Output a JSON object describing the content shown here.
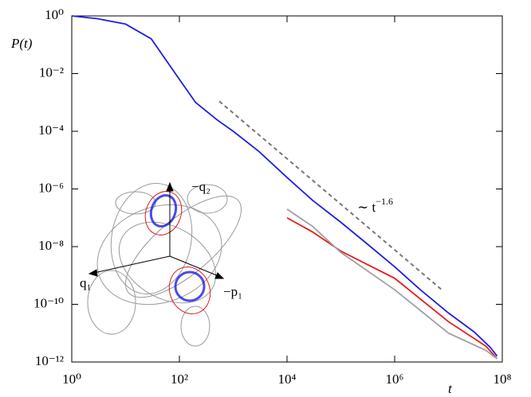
{
  "chart_data": {
    "type": "line",
    "log": true,
    "y_label": "P(t)",
    "x_label": "t",
    "annotation": {
      "text": "∼ t",
      "exponent": "−1.6"
    },
    "inset_labels": [
      "−q₂",
      "q₁",
      "−p₁"
    ],
    "xlim": [
      1,
      100000000
    ],
    "ylim": [
      1e-12,
      1
    ],
    "xticks": [
      {
        "value": 1,
        "label": "10⁰"
      },
      {
        "value": 100,
        "label": "10²"
      },
      {
        "value": 10000,
        "label": "10⁴"
      },
      {
        "value": 1000000,
        "label": "10⁶"
      },
      {
        "value": 100000000,
        "label": "10⁸"
      }
    ],
    "yticks": [
      {
        "value": 1,
        "label": "10⁰"
      },
      {
        "value": 0.01,
        "label": "10⁻²"
      },
      {
        "value": 0.0001,
        "label": "10⁻⁴"
      },
      {
        "value": 1e-06,
        "label": "10⁻⁶"
      },
      {
        "value": 1e-08,
        "label": "10⁻⁸"
      },
      {
        "value": 1e-10,
        "label": "10⁻¹⁰"
      },
      {
        "value": 1e-12,
        "label": "10⁻¹²"
      }
    ],
    "series": [
      {
        "color": "#1f1fe6",
        "x": [
          1,
          3,
          10,
          30,
          100,
          200,
          500,
          1000,
          3000,
          10000,
          30000,
          100000,
          300000,
          1000000,
          3000000,
          10000000,
          30000000,
          60000000,
          80000000
        ],
        "values": [
          1,
          0.8,
          0.52,
          0.16,
          0.0063,
          0.001,
          0.00025,
          0.0001,
          2e-05,
          2.5e-06,
          4e-07,
          7e-08,
          1.3e-08,
          2e-09,
          3.2e-10,
          5e-11,
          1.1e-11,
          3.2e-12,
          1.6e-12
        ]
      },
      {
        "color": "#e61a1a",
        "x": [
          10000,
          30000,
          100000,
          1000000,
          10000000,
          50000000,
          80000000
        ],
        "values": [
          1e-07,
          3.2e-08,
          7e-09,
          8e-10,
          2.5e-11,
          3.5e-12,
          1.3e-12
        ]
      },
      {
        "color": "#a0a0a0",
        "x": [
          10000,
          30000,
          100000,
          1000000,
          10000000,
          50000000,
          80000000
        ],
        "values": [
          2e-07,
          5e-08,
          6.3e-09,
          3.2e-10,
          1e-11,
          2.5e-12,
          1.3e-12
        ]
      },
      {
        "color": "#777777",
        "dashed": true,
        "x": [
          550,
          7800000
        ],
        "values": [
          0.0011,
          3e-10
        ]
      }
    ]
  }
}
